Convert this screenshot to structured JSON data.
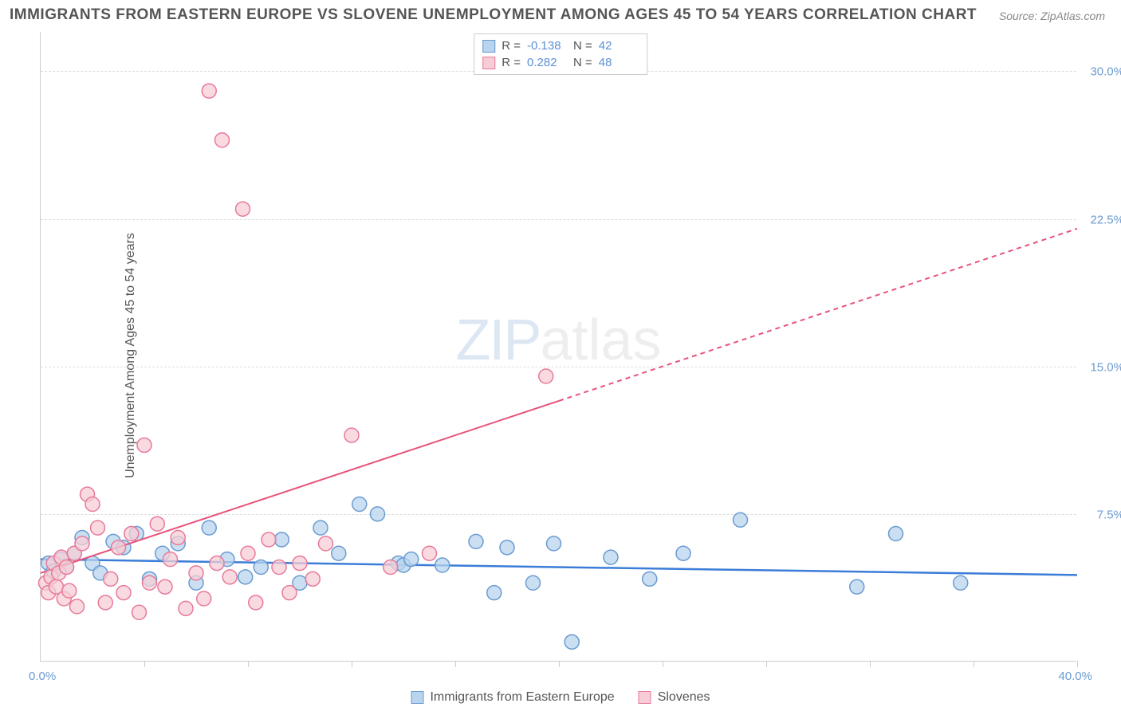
{
  "title": "IMMIGRANTS FROM EASTERN EUROPE VS SLOVENE UNEMPLOYMENT AMONG AGES 45 TO 54 YEARS CORRELATION CHART",
  "source": "Source: ZipAtlas.com",
  "y_axis_label": "Unemployment Among Ages 45 to 54 years",
  "watermark": {
    "left": "ZIP",
    "right": "atlas"
  },
  "chart": {
    "type": "scatter",
    "xlim": [
      0,
      40
    ],
    "ylim": [
      0,
      32
    ],
    "x_origin_label": "0.0%",
    "x_max_label": "40.0%",
    "y_ticks": [
      {
        "value": 7.5,
        "label": "7.5%"
      },
      {
        "value": 15.0,
        "label": "15.0%"
      },
      {
        "value": 22.5,
        "label": "22.5%"
      },
      {
        "value": 30.0,
        "label": "30.0%"
      }
    ],
    "x_tick_positions": [
      4,
      8,
      12,
      16,
      20,
      24,
      28,
      32,
      36,
      40
    ],
    "grid_color": "#dddddd",
    "background_color": "#ffffff",
    "marker_radius": 9,
    "marker_stroke_width": 1.5,
    "series": [
      {
        "name": "Immigrants from Eastern Europe",
        "fill_color": "#b8d4ee",
        "stroke_color": "#6b9bd1",
        "correlation_R": "-0.138",
        "correlation_N": "42",
        "trend_line": {
          "x1": 0,
          "y1": 5.2,
          "x2": 40,
          "y2": 4.4,
          "solid_until_x": 40,
          "color": "#3b7dd8",
          "width": 2.5
        },
        "points": [
          [
            0.3,
            5.0
          ],
          [
            0.5,
            4.6
          ],
          [
            0.8,
            5.2
          ],
          [
            1.0,
            4.8
          ],
          [
            1.3,
            5.5
          ],
          [
            1.6,
            6.3
          ],
          [
            2.0,
            5.0
          ],
          [
            2.3,
            4.5
          ],
          [
            2.8,
            6.1
          ],
          [
            3.2,
            5.8
          ],
          [
            3.7,
            6.5
          ],
          [
            4.2,
            4.2
          ],
          [
            4.7,
            5.5
          ],
          [
            5.3,
            6.0
          ],
          [
            6.0,
            4.0
          ],
          [
            6.5,
            6.8
          ],
          [
            7.2,
            5.2
          ],
          [
            7.9,
            4.3
          ],
          [
            8.5,
            4.8
          ],
          [
            9.3,
            6.2
          ],
          [
            10.0,
            4.0
          ],
          [
            10.8,
            6.8
          ],
          [
            11.5,
            5.5
          ],
          [
            12.3,
            8.0
          ],
          [
            13.0,
            7.5
          ],
          [
            13.8,
            5.0
          ],
          [
            14.0,
            4.9
          ],
          [
            14.3,
            5.2
          ],
          [
            15.5,
            4.9
          ],
          [
            16.8,
            6.1
          ],
          [
            17.5,
            3.5
          ],
          [
            18.0,
            5.8
          ],
          [
            19.0,
            4.0
          ],
          [
            19.8,
            6.0
          ],
          [
            20.5,
            1.0
          ],
          [
            22.0,
            5.3
          ],
          [
            23.5,
            4.2
          ],
          [
            24.8,
            5.5
          ],
          [
            27.0,
            7.2
          ],
          [
            31.5,
            3.8
          ],
          [
            33.0,
            6.5
          ],
          [
            35.5,
            4.0
          ]
        ]
      },
      {
        "name": "Slovenes",
        "fill_color": "#f6cdd6",
        "stroke_color": "#e87a9a",
        "correlation_R": "0.282",
        "correlation_N": "48",
        "trend_line": {
          "x1": 0,
          "y1": 4.5,
          "x2": 40,
          "y2": 22.0,
          "solid_until_x": 20,
          "color": "#e8537a",
          "width": 2
        },
        "points": [
          [
            0.2,
            4.0
          ],
          [
            0.3,
            3.5
          ],
          [
            0.4,
            4.3
          ],
          [
            0.5,
            5.0
          ],
          [
            0.6,
            3.8
          ],
          [
            0.7,
            4.5
          ],
          [
            0.8,
            5.3
          ],
          [
            0.9,
            3.2
          ],
          [
            1.0,
            4.8
          ],
          [
            1.1,
            3.6
          ],
          [
            1.3,
            5.5
          ],
          [
            1.4,
            2.8
          ],
          [
            1.6,
            6.0
          ],
          [
            1.8,
            8.5
          ],
          [
            2.0,
            8.0
          ],
          [
            2.2,
            6.8
          ],
          [
            2.5,
            3.0
          ],
          [
            2.7,
            4.2
          ],
          [
            3.0,
            5.8
          ],
          [
            3.2,
            3.5
          ],
          [
            3.5,
            6.5
          ],
          [
            3.8,
            2.5
          ],
          [
            4.0,
            11.0
          ],
          [
            4.2,
            4.0
          ],
          [
            4.5,
            7.0
          ],
          [
            4.8,
            3.8
          ],
          [
            5.0,
            5.2
          ],
          [
            5.3,
            6.3
          ],
          [
            5.6,
            2.7
          ],
          [
            6.0,
            4.5
          ],
          [
            6.3,
            3.2
          ],
          [
            6.5,
            29.0
          ],
          [
            6.8,
            5.0
          ],
          [
            7.0,
            26.5
          ],
          [
            7.3,
            4.3
          ],
          [
            7.8,
            23.0
          ],
          [
            8.0,
            5.5
          ],
          [
            8.3,
            3.0
          ],
          [
            8.8,
            6.2
          ],
          [
            9.2,
            4.8
          ],
          [
            9.6,
            3.5
          ],
          [
            10.0,
            5.0
          ],
          [
            10.5,
            4.2
          ],
          [
            11.0,
            6.0
          ],
          [
            12.0,
            11.5
          ],
          [
            13.5,
            4.8
          ],
          [
            15.0,
            5.5
          ],
          [
            19.5,
            14.5
          ]
        ]
      }
    ]
  },
  "bottom_legend": [
    {
      "label": "Immigrants from Eastern Europe",
      "fill": "#b8d4ee",
      "stroke": "#6b9bd1"
    },
    {
      "label": "Slovenes",
      "fill": "#f6cdd6",
      "stroke": "#e87a9a"
    }
  ]
}
